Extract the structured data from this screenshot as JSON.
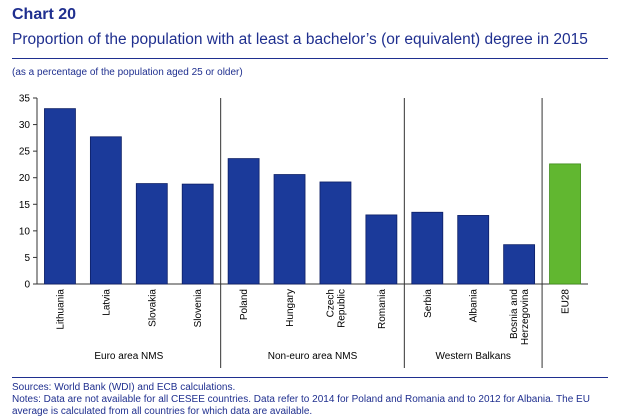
{
  "header": {
    "chart_number": "Chart 20",
    "title": "Proportion of the population with at least a bachelor’s (or equivalent) degree in 2015",
    "subtitle": "(as a percentage of the population aged 25 or older)"
  },
  "chart_data": {
    "type": "bar",
    "categories": [
      "Lithuania",
      "Latvia",
      "Slovakia",
      "Slovenia",
      "Poland",
      "Hungary",
      "Czech Republic",
      "Romania",
      "Serbia",
      "Albania",
      "Bosnia and Herzegovina",
      "EU28"
    ],
    "category_lines": [
      [
        "Lithuania"
      ],
      [
        "Latvia"
      ],
      [
        "Slovakia"
      ],
      [
        "Slovenia"
      ],
      [
        "Poland"
      ],
      [
        "Hungary"
      ],
      [
        "Czech",
        "Republic"
      ],
      [
        "Romania"
      ],
      [
        "Serbia"
      ],
      [
        "Albania"
      ],
      [
        "Bosnia and",
        "Herzegovina"
      ],
      [
        "EU28"
      ]
    ],
    "values": [
      33.0,
      27.7,
      18.9,
      18.8,
      23.6,
      20.6,
      19.2,
      13.0,
      13.5,
      12.9,
      7.4,
      22.6
    ],
    "highlight": [
      false,
      false,
      false,
      false,
      false,
      false,
      false,
      false,
      false,
      false,
      false,
      true
    ],
    "groups": [
      {
        "label": "Euro area NMS",
        "start": 0,
        "end": 3
      },
      {
        "label": "Non-euro area NMS",
        "start": 4,
        "end": 7
      },
      {
        "label": "Western Balkans",
        "start": 8,
        "end": 10
      },
      {
        "label": "",
        "start": 11,
        "end": 11
      }
    ],
    "ylim": [
      0,
      35
    ],
    "yticks": [
      0,
      5,
      10,
      15,
      20,
      25,
      30,
      35
    ],
    "xlabel": "",
    "ylabel": "",
    "colors": {
      "bar": "#1b3a9a",
      "bar_edge": "#0d1f66",
      "highlight": "#61b730",
      "highlight_edge": "#3f8a1a",
      "axis": "#333333",
      "text": "#000000"
    }
  },
  "notes": {
    "sources": "Sources: World Bank (WDI) and ECB calculations.",
    "line1": "Notes: Data are not available for all CESEE countries. Data refer to 2014 for Poland and Romania and to 2012 for Albania. The EU",
    "line2": "average is calculated from all countries for which data are available."
  }
}
